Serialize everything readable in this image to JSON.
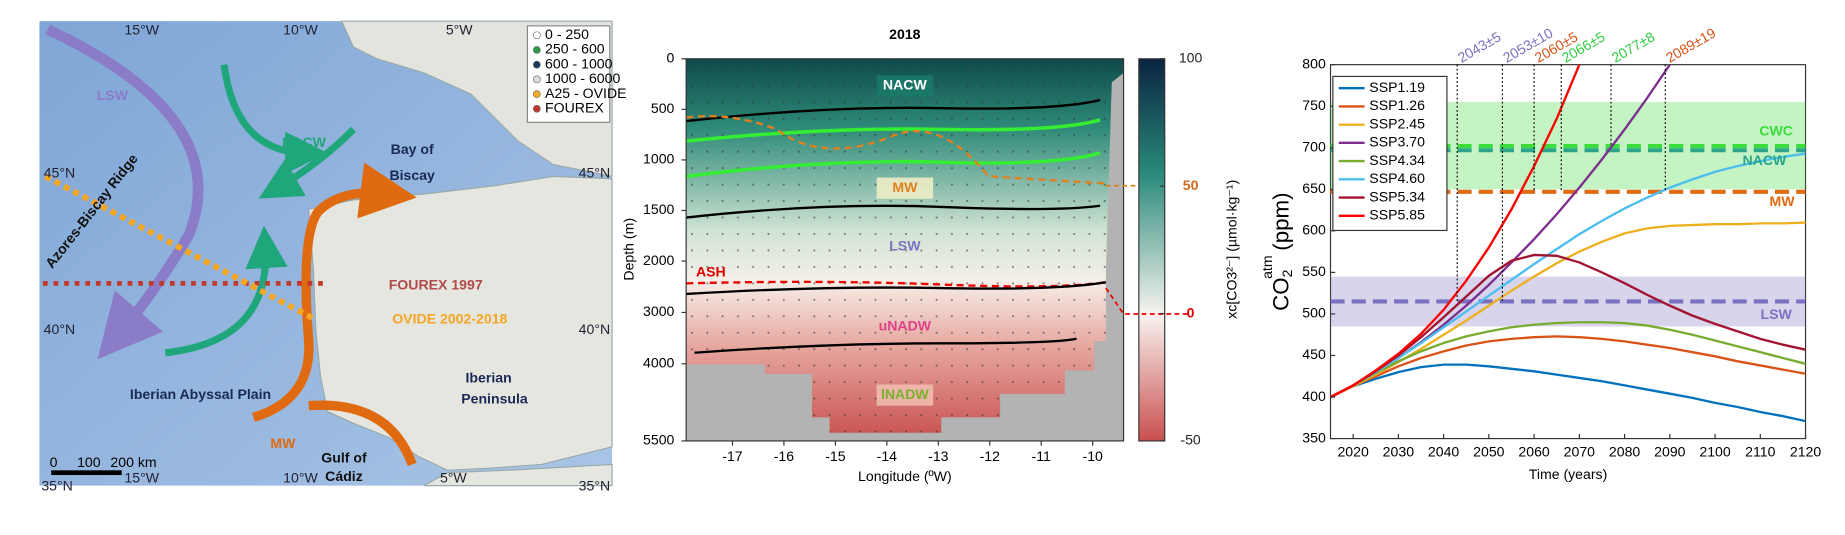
{
  "map": {
    "labels": [
      "LSW",
      "NACW",
      "Bay of",
      "Biscay",
      "Azores-Biscay Ridge",
      "FOUREX 1997",
      "OVIDE 2002-2018",
      "Iberian Abyssal Plain",
      "Iberian",
      "Peninsula",
      "MW",
      "Gulf of",
      "Cádiz"
    ],
    "legend": [
      "0 - 250",
      "250 - 600",
      "600 - 1000",
      "1000 - 6000",
      "A25 - OVIDE",
      "FOUREX"
    ],
    "grid_labels": [
      "15°W",
      "10°W",
      "5°W",
      "45°N",
      "40°N",
      "45°N",
      "40°N",
      "35°N",
      "10°W",
      "5°W",
      "35°N",
      "15°W"
    ],
    "scale": [
      "0",
      "100",
      "200 km"
    ]
  },
  "chart_data": [
    {
      "type": "section",
      "title": "2018",
      "xlabel": "Longitude (ºW)",
      "ylabel": "Depth (m)",
      "xlim": [
        -17.9,
        -9.4
      ],
      "xticks": [
        -17,
        -16,
        -15,
        -14,
        -13,
        -12,
        -11,
        -10
      ],
      "ylim": [
        0,
        5500
      ],
      "ybreak": 2000,
      "yticks": [
        0,
        500,
        1000,
        1500,
        2000,
        3000,
        4000,
        5500
      ],
      "labels": [
        "NACW",
        "MW",
        "LSW",
        "ASH",
        "uNADW",
        "lNADW"
      ],
      "colorbar": {
        "label": "xc[CO3²⁻] (µmol·kg⁻¹)",
        "lim": [
          -50,
          100
        ],
        "ticks": [
          100,
          50,
          0,
          -50
        ],
        "tick_colors": [
          "#222",
          "#d2691e",
          "#e00000",
          "#222"
        ]
      }
    },
    {
      "type": "line",
      "xlabel": "Time (years)",
      "ylabel": {
        "main": "CO",
        "sub": "2",
        "sup": "atm",
        "unit": "(ppm)"
      },
      "xlim": [
        2015,
        2120
      ],
      "xticks": [
        2020,
        2030,
        2040,
        2050,
        2060,
        2070,
        2080,
        2090,
        2100,
        2110,
        2120
      ],
      "ylim": [
        350,
        800
      ],
      "yticks": [
        350,
        400,
        450,
        500,
        550,
        600,
        650,
        700,
        750,
        800
      ],
      "legend": "top-left",
      "x": [
        2015,
        2020,
        2025,
        2030,
        2035,
        2040,
        2045,
        2050,
        2055,
        2060,
        2065,
        2070,
        2075,
        2080,
        2085,
        2090,
        2095,
        2100,
        2105,
        2110,
        2115,
        2120
      ],
      "series": [
        {
          "name": "SSP1.19",
          "color": "#0072bd",
          "values": [
            400,
            413,
            422,
            430,
            436,
            439,
            439,
            437,
            434,
            431,
            427,
            423,
            419,
            414,
            409,
            404,
            399,
            393,
            388,
            382,
            377,
            371
          ]
        },
        {
          "name": "SSP1.26",
          "color": "#d95319",
          "values": [
            400,
            413,
            425,
            437,
            447,
            455,
            462,
            467,
            470,
            472,
            473,
            472,
            470,
            467,
            463,
            459,
            454,
            449,
            443,
            438,
            433,
            428
          ]
        },
        {
          "name": "SSP2.45",
          "color": "#edb120",
          "values": [
            400,
            413,
            427,
            442,
            458,
            475,
            492,
            510,
            528,
            545,
            561,
            575,
            587,
            597,
            603,
            606,
            607,
            608,
            608,
            609,
            609,
            610
          ]
        },
        {
          "name": "SSP3.70",
          "color": "#7e2f8e",
          "values": [
            400,
            414,
            430,
            447,
            466,
            487,
            510,
            535,
            562,
            590,
            620,
            652,
            686,
            722,
            760,
            800,
            null,
            null,
            null,
            null,
            null,
            null
          ]
        },
        {
          "name": "SSP4.34",
          "color": "#77ac30",
          "values": [
            400,
            414,
            429,
            443,
            455,
            465,
            473,
            479,
            484,
            487,
            489,
            490,
            490,
            489,
            486,
            481,
            475,
            468,
            461,
            454,
            447,
            440
          ]
        },
        {
          "name": "SSP4.60",
          "color": "#4dbeee",
          "values": [
            400,
            414,
            430,
            447,
            465,
            484,
            503,
            522,
            541,
            560,
            578,
            596,
            612,
            627,
            640,
            652,
            662,
            671,
            678,
            684,
            689,
            693
          ]
        },
        {
          "name": "SSP5.34",
          "color": "#a2142f",
          "values": [
            400,
            414,
            431,
            450,
            472,
            496,
            521,
            546,
            564,
            571,
            570,
            562,
            550,
            537,
            523,
            510,
            498,
            488,
            479,
            470,
            463,
            457
          ]
        },
        {
          "name": "SSP5.85",
          "color": "#ff0000",
          "values": [
            400,
            414,
            432,
            452,
            476,
            505,
            540,
            580,
            626,
            678,
            735,
            800,
            null,
            null,
            null,
            null,
            null,
            null,
            null,
            null,
            null,
            null
          ]
        }
      ],
      "bands": [
        {
          "name": "CWC",
          "range": [
            650,
            755
          ],
          "line": 702,
          "color": "#3ddc3d"
        },
        {
          "name": "NACW",
          "line": 697,
          "color": "#2aa58a"
        },
        {
          "name": "MW",
          "line": 647,
          "color": "#e06a10"
        },
        {
          "name": "LSW",
          "range": [
            485,
            545
          ],
          "line": 515,
          "color": "#7a72c0"
        }
      ],
      "annotations": [
        {
          "x": 2043,
          "label": "2043±5",
          "color": "#7a72c0",
          "to": 515
        },
        {
          "x": 2053,
          "label": "2053±10",
          "color": "#7a72c0",
          "to": 515
        },
        {
          "x": 2060,
          "label": "2060±5",
          "color": "#d95319",
          "to": 647
        },
        {
          "x": 2066,
          "label": "2066±5",
          "color": "#2ecc40",
          "to": 647
        },
        {
          "x": 2077,
          "label": "2077±8",
          "color": "#2ecc40",
          "to": 702
        },
        {
          "x": 2089,
          "label": "2089±19",
          "color": "#d95319",
          "to": 647
        }
      ]
    }
  ]
}
